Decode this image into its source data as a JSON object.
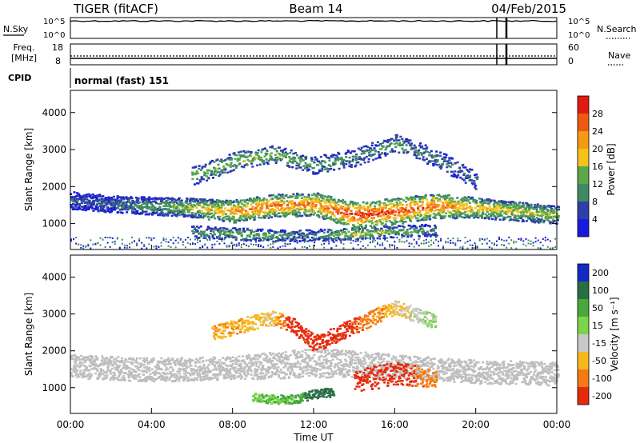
{
  "header": {
    "station": "TIGER (fitACF)",
    "beam": "Beam 14",
    "date": "04/Feb/2015"
  },
  "top_panels": {
    "nsky_label": "N.Sky",
    "nsearch_label": "N.Search",
    "noise_ticks_left": [
      "10^5",
      "10^0"
    ],
    "noise_ticks_right": [
      "10^5",
      "10^0"
    ],
    "freq_label_line1": "Freq.",
    "freq_label_line2": "[MHz]",
    "freq_ticks": [
      "18",
      "8"
    ],
    "nave_label": "Nave",
    "nave_ticks": [
      "60",
      "0"
    ],
    "cpid_label": "CPID",
    "cpid_value": "normal (fast) 151"
  },
  "colors": {
    "power": [
      "#1a1adc",
      "#2e3fa8",
      "#3f8a63",
      "#5aa84a",
      "#f5c21a",
      "#f59a14",
      "#ee5a12",
      "#e01a12"
    ],
    "velocity": [
      "#1428c8",
      "#2a6e44",
      "#48a83a",
      "#7cd44a",
      "#c8c8c8",
      "#f5b81e",
      "#f57a14",
      "#e62a0a"
    ],
    "ground_scatter": "#bebebe"
  },
  "chart_data": [
    {
      "type": "heatmap",
      "name_text": "Power",
      "ylabel": "Slant Range [km]",
      "y_ticks": [
        "1000",
        "2000",
        "3000",
        "4000"
      ],
      "ylim": [
        300,
        4600
      ],
      "colorbar_label": "Power [dB]",
      "colorbar_ticks": [
        "4",
        "8",
        "12",
        "16",
        "20",
        "24",
        "28"
      ],
      "colorbar_range": [
        0,
        32
      ],
      "layers": [
        {
          "name": "main_echo",
          "t": [
            0,
            2,
            4,
            6,
            8,
            10,
            12,
            14,
            16,
            18,
            20,
            22,
            24
          ],
          "center": [
            1650,
            1550,
            1500,
            1450,
            1350,
            1500,
            1550,
            1250,
            1350,
            1500,
            1450,
            1350,
            1250
          ],
          "width": [
            300,
            280,
            300,
            320,
            380,
            380,
            400,
            450,
            450,
            420,
            350,
            320,
            300
          ],
          "level": [
            6,
            8,
            12,
            16,
            24,
            26,
            24,
            30,
            28,
            26,
            20,
            18,
            16
          ]
        },
        {
          "name": "upper_arc",
          "t": [
            6,
            8,
            10,
            12,
            14,
            16,
            18,
            20
          ],
          "center": [
            2300,
            2700,
            2900,
            2600,
            2800,
            3200,
            2800,
            2200
          ],
          "width": [
            300,
            300,
            300,
            300,
            300,
            300,
            300,
            300
          ],
          "level": [
            14,
            16,
            14,
            12,
            10,
            12,
            10,
            8
          ]
        },
        {
          "name": "lower_echo",
          "t": [
            6,
            8,
            10,
            12,
            14,
            16,
            18
          ],
          "center": [
            800,
            750,
            700,
            700,
            750,
            800,
            850
          ],
          "width": [
            200,
            200,
            200,
            200,
            200,
            200,
            200
          ],
          "level": [
            10,
            14,
            12,
            10,
            18,
            14,
            10
          ]
        }
      ]
    },
    {
      "type": "heatmap",
      "name_text": "Velocity",
      "ylabel": "Slant Range [km]",
      "y_ticks": [
        "1000",
        "2000",
        "3000",
        "4000"
      ],
      "ylim": [
        300,
        4600
      ],
      "xlabel": "Time UT",
      "x_ticks": [
        "00:00",
        "04:00",
        "08:00",
        "12:00",
        "16:00",
        "20:00",
        "00:00"
      ],
      "xlim": [
        0,
        24
      ],
      "colorbar_label": "Velocity [m s⁻¹]",
      "colorbar_ticks": [
        "200",
        "100",
        "50",
        "15",
        "-15",
        "-50",
        "-100",
        "-200"
      ],
      "layers": [
        {
          "name": "ground_scatter",
          "t": [
            0,
            4,
            8,
            12,
            16,
            20,
            24
          ],
          "center": [
            1600,
            1500,
            1550,
            1700,
            1600,
            1450,
            1400
          ],
          "width": [
            400,
            400,
            400,
            500,
            400,
            400,
            400
          ],
          "value": [
            0,
            0,
            0,
            0,
            0,
            0,
            0
          ]
        },
        {
          "name": "negative_flow",
          "t": [
            14,
            15,
            16,
            17,
            18
          ],
          "center": [
            1200,
            1300,
            1400,
            1350,
            1200
          ],
          "width": [
            350,
            400,
            400,
            350,
            300
          ],
          "value": [
            -120,
            -180,
            -150,
            -100,
            -60
          ]
        },
        {
          "name": "positive_flow",
          "t": [
            9,
            10,
            11,
            12,
            13
          ],
          "center": [
            750,
            700,
            700,
            850,
            900
          ],
          "width": [
            150,
            150,
            150,
            150,
            150
          ],
          "value": [
            40,
            50,
            60,
            150,
            180
          ]
        },
        {
          "name": "upper_arc_flow",
          "t": [
            7,
            8,
            9,
            10,
            11,
            12,
            16,
            18
          ],
          "center": [
            2500,
            2650,
            2800,
            2900,
            2700,
            2200,
            3200,
            2800
          ],
          "width": [
            250,
            250,
            250,
            250,
            250,
            300,
            250,
            250
          ],
          "value": [
            -40,
            -45,
            -30,
            -20,
            -150,
            -180,
            -20,
            30
          ]
        }
      ]
    }
  ]
}
